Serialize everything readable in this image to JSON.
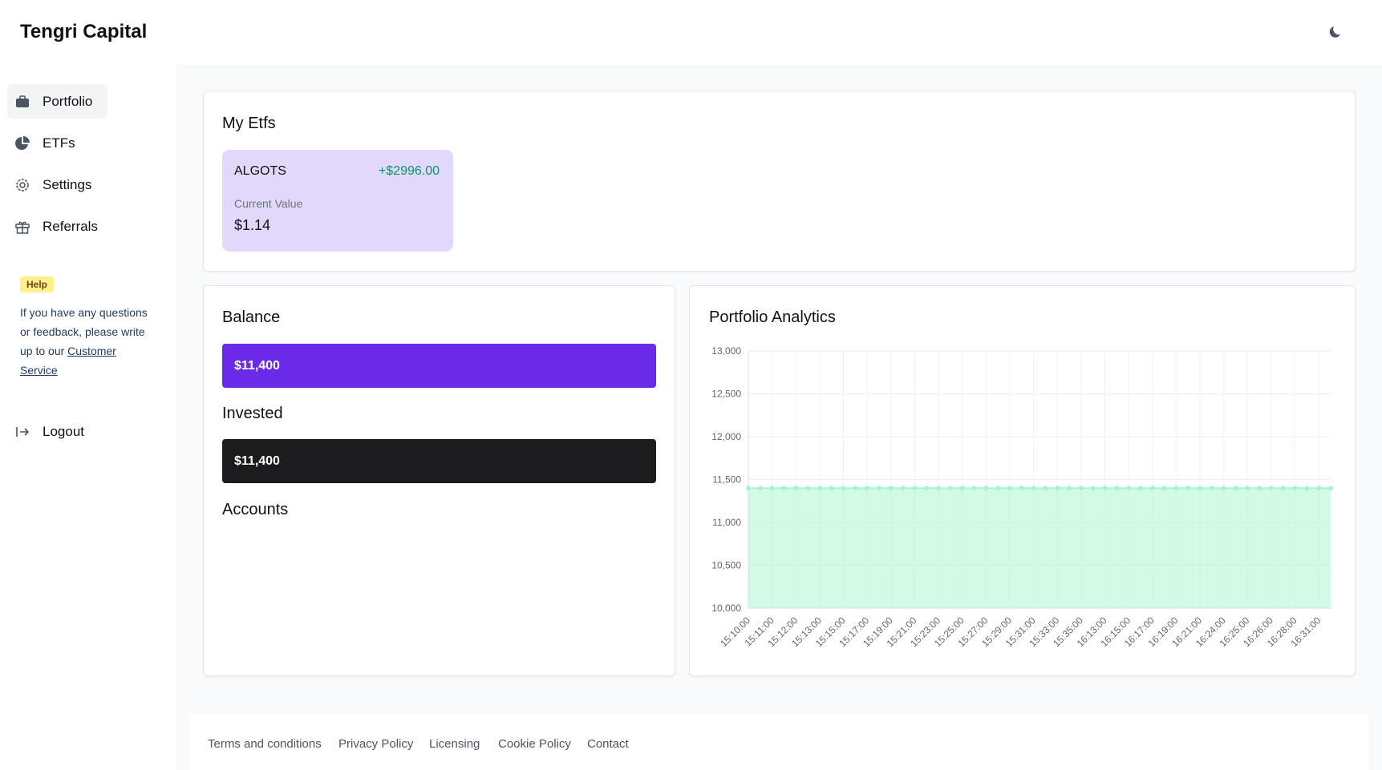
{
  "header": {
    "title": "Tengri Capital"
  },
  "nav": [
    "Portfolio",
    "ETFs",
    "Settings",
    "Referrals"
  ],
  "help": {
    "badge": "Help",
    "text": "If you have any questions or feedback, please write up to our ",
    "link": "Customer Service"
  },
  "logout": "Logout",
  "etfs": {
    "title": "My Etfs",
    "items": [
      {
        "name": "ALGOTS",
        "change": "+$2996.00",
        "value_label": "Current Value",
        "value": "$1.14"
      }
    ]
  },
  "balance": {
    "title": "Balance",
    "value": "$11,400"
  },
  "invested": {
    "title": "Invested",
    "value": "$11,400"
  },
  "accounts": {
    "title": "Accounts"
  },
  "chart_data": {
    "type": "line",
    "title": "Portfolio Analytics",
    "categories": [
      "15:10:00",
      null,
      "15:11:00",
      null,
      "15:12:00",
      null,
      "15:13:00",
      null,
      "15:15:00",
      null,
      "15:17:00",
      null,
      "15:19:00",
      null,
      "15:21:00",
      null,
      "15:23:00",
      null,
      "15:25:00",
      null,
      "15:27:00",
      null,
      "15:29:00",
      null,
      "15:31:00",
      null,
      "15:33:00",
      null,
      "15:35:00",
      null,
      "16:13:00",
      null,
      "16:15:00",
      null,
      "16:17:00",
      null,
      "16:19:00",
      null,
      "16:21:00",
      null,
      "16:24:00",
      null,
      "16:25:00",
      null,
      "16:26:00",
      null,
      "16:28:00",
      null,
      "16:31:00",
      null
    ],
    "series": [
      {
        "color": "#a7f3d0",
        "values": [
          11400,
          11400,
          11400,
          11400,
          11400,
          11400,
          11400,
          11400,
          11400,
          11400,
          11400,
          11400,
          11400,
          11400,
          11400,
          11400,
          11400,
          11400,
          11400,
          11400,
          11400,
          11400,
          11400,
          11400,
          11400,
          11400,
          11400,
          11400,
          11400,
          11400,
          11400,
          11400,
          11400,
          11400,
          11400,
          11400,
          11400,
          11400,
          11400,
          11400,
          11400,
          11400,
          11400,
          11400,
          11400,
          11400,
          11400,
          11400,
          11400,
          11400
        ]
      }
    ],
    "ylim": [
      10000,
      13000
    ],
    "yticks": [
      {
        "value": 10000,
        "label": "10,000"
      },
      {
        "value": 10500,
        "label": "10,500"
      },
      {
        "value": 11000,
        "label": "11,000"
      },
      {
        "value": 11500,
        "label": "11,500"
      },
      {
        "value": 12000,
        "label": "12,000"
      },
      {
        "value": 12500,
        "label": "12,500"
      },
      {
        "value": 13000,
        "label": "13,000"
      }
    ],
    "grid": true,
    "fill": true
  },
  "footer": [
    "Terms and conditions",
    "Privacy Policy",
    "Licensing",
    "Cookie Policy",
    "Contact"
  ]
}
